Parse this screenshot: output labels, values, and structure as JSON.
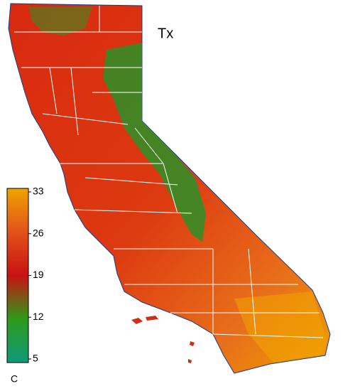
{
  "map": {
    "title": "Tx",
    "colorbar": {
      "lim": [
        5,
        33
      ],
      "ticks": [
        5,
        12,
        19,
        26,
        33
      ],
      "unit": "C",
      "colors": [
        "#0e9a7a",
        "#2e9a1a",
        "#c81212",
        "#e2521a",
        "#f0a400"
      ]
    }
  }
}
